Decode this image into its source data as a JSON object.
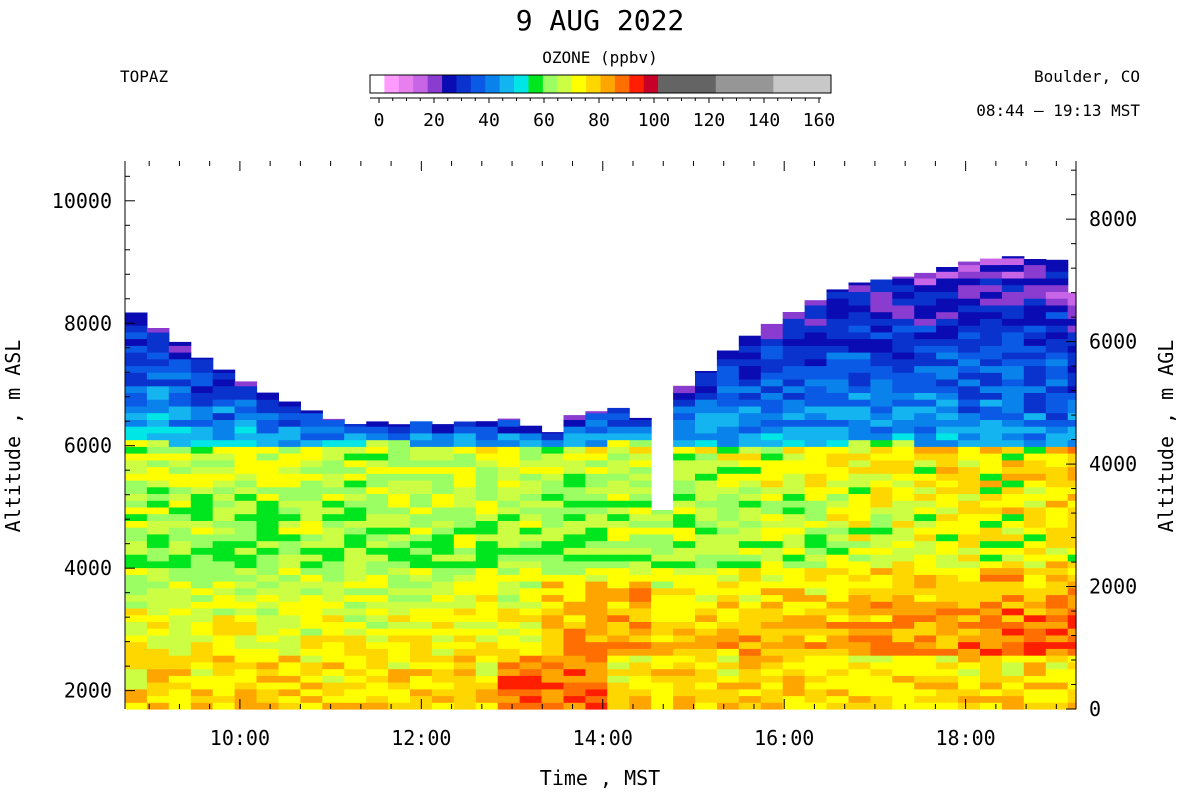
{
  "header": {
    "title": "9 AUG 2022",
    "instrument": "TOPAZ",
    "location": "Boulder, CO",
    "time_range": "08:44 – 19:13 MST"
  },
  "chart_data": {
    "type": "heatmap",
    "title": "9 AUG 2022",
    "xlabel": "Time , MST",
    "ylabel_left": "Altitude , m ASL",
    "ylabel_right": "Altitude , m AGL",
    "x_range": [
      "08:44",
      "19:13"
    ],
    "x_ticks": [
      "10:00",
      "12:00",
      "14:00",
      "16:00",
      "18:00"
    ],
    "y_left_range": [
      1700,
      10650
    ],
    "y_left_ticks": [
      2000,
      4000,
      6000,
      8000,
      10000
    ],
    "y_right_offset": 1700,
    "y_right_ticks": [
      0,
      2000,
      4000,
      6000,
      8000
    ],
    "colorbar": {
      "title": "OZONE (ppbv)",
      "ticks": [
        0,
        20,
        40,
        60,
        80,
        100,
        120,
        140,
        160
      ],
      "range": [
        0,
        160
      ],
      "bins": [
        {
          "lo": 0,
          "hi": 5,
          "color": "#ffffff"
        },
        {
          "lo": 5,
          "hi": 10,
          "color": "#ff9bff"
        },
        {
          "lo": 10,
          "hi": 15,
          "color": "#e77fef"
        },
        {
          "lo": 15,
          "hi": 20,
          "color": "#c864e6"
        },
        {
          "lo": 20,
          "hi": 25,
          "color": "#8a3bd0"
        },
        {
          "lo": 25,
          "hi": 30,
          "color": "#0b0bb4"
        },
        {
          "lo": 30,
          "hi": 35,
          "color": "#0a32cd"
        },
        {
          "lo": 35,
          "hi": 40,
          "color": "#0a5ae6"
        },
        {
          "lo": 40,
          "hi": 45,
          "color": "#0a82eb"
        },
        {
          "lo": 45,
          "hi": 50,
          "color": "#14b4f0"
        },
        {
          "lo": 50,
          "hi": 55,
          "color": "#00e6e6"
        },
        {
          "lo": 55,
          "hi": 60,
          "color": "#00e61e"
        },
        {
          "lo": 60,
          "hi": 65,
          "color": "#9bff64"
        },
        {
          "lo": 65,
          "hi": 70,
          "color": "#ccff44"
        },
        {
          "lo": 70,
          "hi": 75,
          "color": "#ffff00"
        },
        {
          "lo": 75,
          "hi": 80,
          "color": "#ffd700"
        },
        {
          "lo": 80,
          "hi": 85,
          "color": "#ffa500"
        },
        {
          "lo": 85,
          "hi": 90,
          "color": "#ff6e00"
        },
        {
          "lo": 90,
          "hi": 95,
          "color": "#ff1e00"
        },
        {
          "lo": 95,
          "hi": 100,
          "color": "#c80028"
        },
        {
          "lo": 100,
          "hi": 120,
          "color": "#646464"
        },
        {
          "lo": 120,
          "hi": 140,
          "color": "#969696"
        },
        {
          "lo": 140,
          "hi": 160,
          "color": "#c8c8c8"
        }
      ]
    },
    "profile_tops_m_asl": {
      "x": [
        "08:45",
        "09:00",
        "09:15",
        "09:30",
        "09:45",
        "10:00",
        "10:15",
        "10:30",
        "10:45",
        "11:00",
        "11:15",
        "11:30",
        "11:45",
        "12:00",
        "12:15",
        "12:30",
        "12:45",
        "13:00",
        "13:15",
        "13:30",
        "13:45",
        "14:00",
        "14:15",
        "14:30",
        "14:45",
        "15:00",
        "15:15",
        "15:30",
        "15:45",
        "16:00",
        "16:15",
        "16:30",
        "16:45",
        "17:00",
        "17:15",
        "17:30",
        "17:45",
        "18:00",
        "18:15",
        "18:30",
        "18:45",
        "19:00",
        "19:10"
      ],
      "y": [
        8300,
        8000,
        7800,
        7500,
        7300,
        7100,
        6900,
        6750,
        6600,
        6450,
        6350,
        6400,
        6350,
        6400,
        6350,
        6400,
        6400,
        6450,
        6300,
        6200,
        6600,
        6550,
        6650,
        6350,
        6950,
        7000,
        7400,
        7700,
        7900,
        8100,
        8300,
        8500,
        8650,
        8700,
        8750,
        8800,
        8900,
        9000,
        9050,
        9100,
        9050,
        9050,
        8500
      ]
    },
    "gap": {
      "x": [
        "14:37",
        "14:46"
      ],
      "y_below_m_asl": 4950
    }
  }
}
